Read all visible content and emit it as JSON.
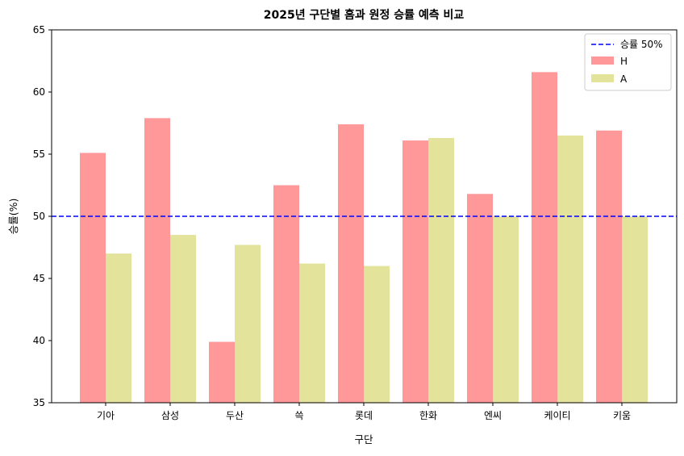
{
  "chart_data": {
    "type": "bar",
    "title": "2025년 구단별 홈과 원정 승률 예측 비교",
    "xlabel": "구단",
    "ylabel": "승률(%)",
    "ylim": [
      35,
      65
    ],
    "yticks": [
      35,
      40,
      45,
      50,
      55,
      60,
      65
    ],
    "categories": [
      "기아",
      "삼성",
      "두산",
      "쓱",
      "롯데",
      "한화",
      "엔씨",
      "케이티",
      "키움"
    ],
    "series": [
      {
        "name": "H",
        "color": "#ff9999",
        "values": [
          55.1,
          57.9,
          39.9,
          52.5,
          57.4,
          56.1,
          51.8,
          61.6,
          56.9
        ]
      },
      {
        "name": "A",
        "color": "#e3e39b",
        "values": [
          47.0,
          48.5,
          47.7,
          46.2,
          46.0,
          56.3,
          50.0,
          56.5,
          50.0
        ]
      }
    ],
    "reference_line": {
      "label": "승률 50%",
      "value": 50,
      "color": "#0000ff",
      "style": "dashed"
    },
    "grid": false,
    "legend_position": "top-right"
  }
}
